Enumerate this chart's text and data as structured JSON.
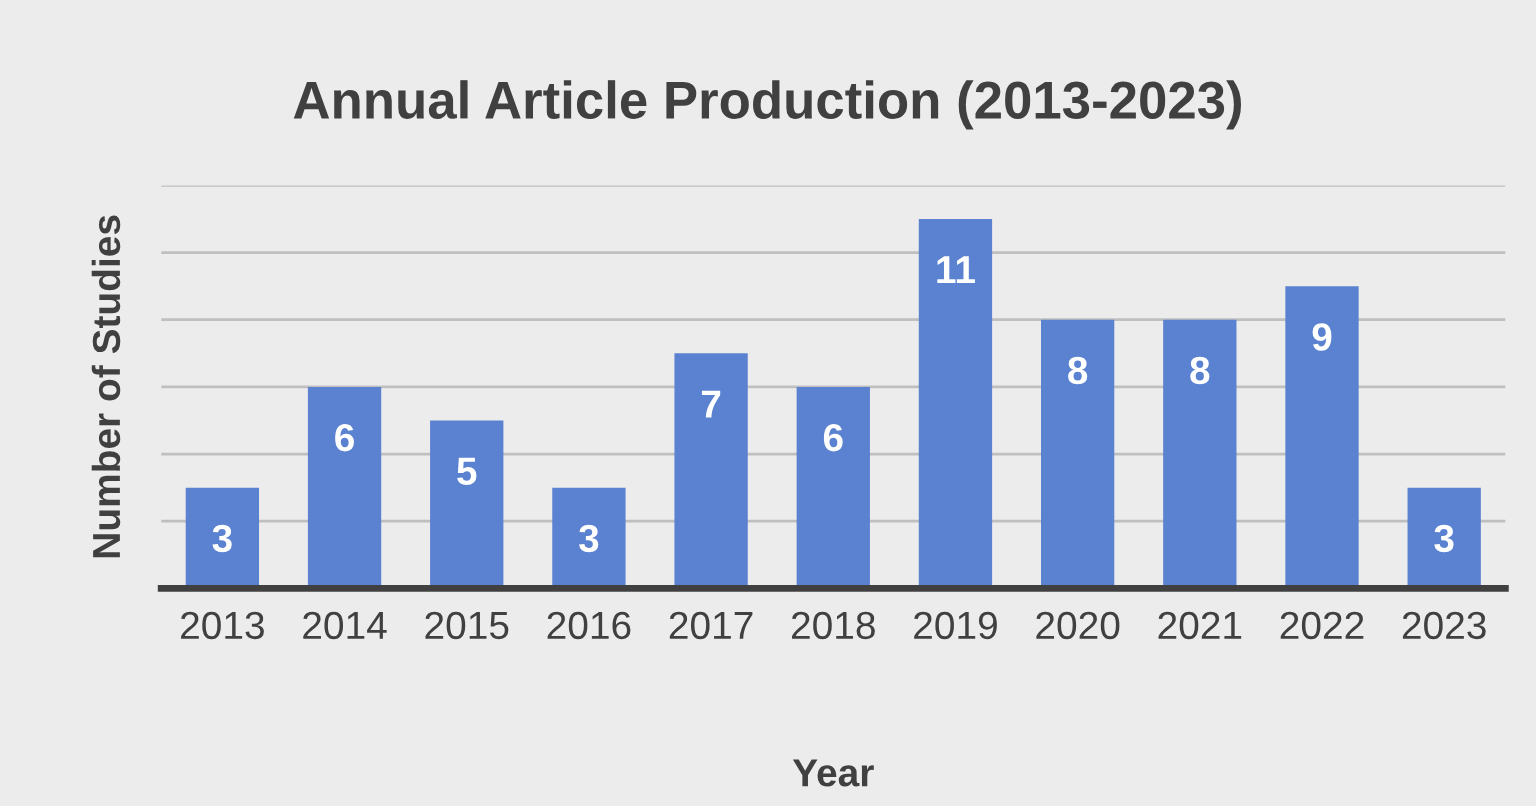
{
  "chart_data": {
    "type": "bar",
    "title": "Annual Article Production (2013-2023)",
    "xlabel": "Year",
    "ylabel": "Number of Studies",
    "categories": [
      "2013",
      "2014",
      "2015",
      "2016",
      "2017",
      "2018",
      "2019",
      "2020",
      "2021",
      "2022",
      "2023"
    ],
    "values": [
      3,
      6,
      5,
      3,
      7,
      6,
      11,
      8,
      8,
      9,
      3
    ],
    "color": "#5a82d0",
    "data_labels": true,
    "ylim": [
      0,
      12
    ],
    "yticks": [
      {
        "value": 0,
        "label": null
      },
      {
        "value": 2,
        "label": null
      },
      {
        "value": 4,
        "label": null
      },
      {
        "value": 6,
        "label": null
      },
      {
        "value": 8,
        "label": null
      },
      {
        "value": 10,
        "label": null
      },
      {
        "value": 12,
        "label": null
      }
    ],
    "grid": "y",
    "tick_labels": "x"
  }
}
